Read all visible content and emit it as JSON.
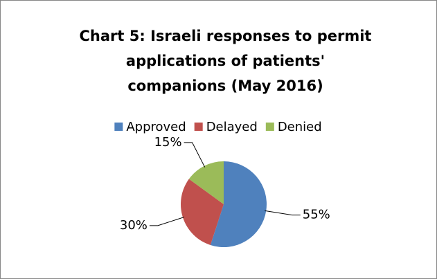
{
  "chart_data": {
    "type": "pie",
    "title": "Chart 5: Israeli responses to permit applications of patients' companions (May 2016)",
    "categories": [
      "Approved",
      "Delayed",
      "Denied"
    ],
    "values": [
      55,
      30,
      15
    ],
    "value_labels": [
      "55%",
      "30%",
      "15%"
    ],
    "colors": [
      "#4f81bd",
      "#c0504d",
      "#9bbb59"
    ],
    "legend": "top"
  }
}
